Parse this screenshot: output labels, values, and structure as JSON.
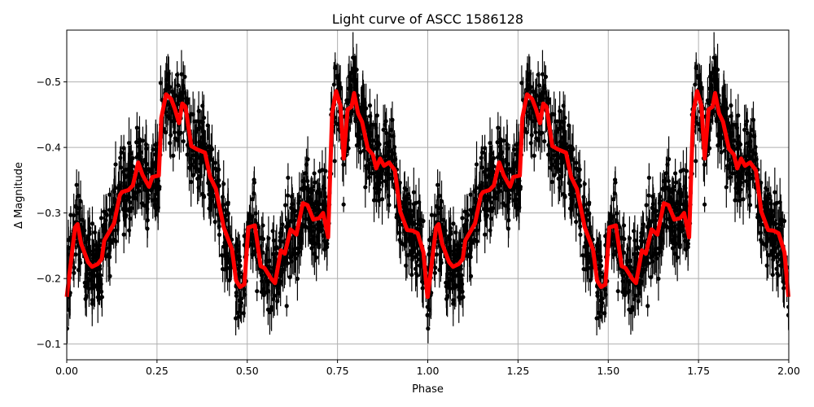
{
  "chart_data": {
    "type": "line",
    "title": "Light curve of ASCC 1586128",
    "xlabel": "Phase",
    "ylabel": "Δ Magnitude",
    "xlim": [
      0,
      2
    ],
    "ylim": [
      -0.579,
      -0.076
    ],
    "y_inverted": true,
    "grid": true,
    "x_ticks": [
      "0.00",
      "0.25",
      "0.50",
      "0.75",
      "1.00",
      "1.25",
      "1.50",
      "1.75",
      "2.00"
    ],
    "x_tick_values": [
      0,
      0.25,
      0.5,
      0.75,
      1,
      1.25,
      1.5,
      1.75,
      2
    ],
    "y_ticks": [
      "−0.5",
      "−0.4",
      "−0.3",
      "−0.2",
      "−0.1"
    ],
    "y_tick_values": [
      -0.5,
      -0.4,
      -0.3,
      -0.2,
      -0.1
    ],
    "colors": {
      "points": "#000000",
      "model": "#ff0000",
      "grid": "#b0b0b0"
    },
    "series": [
      {
        "kind": "errorbar-scatter",
        "description_color": "#000000"
      },
      {
        "kind": "smoothed-model",
        "color": "#ff0000",
        "period_repeat": true,
        "phase": [
          0,
          0.023,
          0.03,
          0.04,
          0.059,
          0.07,
          0.086,
          0.097,
          0.104,
          0.131,
          0.147,
          0.153,
          0.171,
          0.183,
          0.198,
          0.21,
          0.228,
          0.237,
          0.255,
          0.262,
          0.275,
          0.289,
          0.3,
          0.311,
          0.32,
          0.329,
          0.345,
          0.361,
          0.383,
          0.397,
          0.413,
          0.435,
          0.458,
          0.469,
          0.48,
          0.492,
          0.503,
          0.521,
          0.537,
          0.548,
          0.566,
          0.577,
          0.593,
          0.604,
          0.62,
          0.636,
          0.654,
          0.667,
          0.683,
          0.699,
          0.71,
          0.724,
          0.735,
          0.746,
          0.758,
          0.767,
          0.778,
          0.789,
          0.796,
          0.807,
          0.818,
          0.834,
          0.848,
          0.857,
          0.868,
          0.879,
          0.893,
          0.909,
          0.924,
          0.943,
          0.958,
          0.972,
          0.988,
          0.999
        ],
        "mag": [
          -0.172,
          -0.278,
          -0.283,
          -0.253,
          -0.225,
          -0.218,
          -0.222,
          -0.23,
          -0.258,
          -0.284,
          -0.327,
          -0.332,
          -0.335,
          -0.342,
          -0.377,
          -0.358,
          -0.34,
          -0.355,
          -0.357,
          -0.445,
          -0.481,
          -0.474,
          -0.458,
          -0.437,
          -0.467,
          -0.462,
          -0.402,
          -0.397,
          -0.392,
          -0.355,
          -0.337,
          -0.278,
          -0.244,
          -0.197,
          -0.187,
          -0.191,
          -0.278,
          -0.281,
          -0.219,
          -0.216,
          -0.2,
          -0.193,
          -0.243,
          -0.238,
          -0.275,
          -0.267,
          -0.315,
          -0.312,
          -0.29,
          -0.292,
          -0.3,
          -0.263,
          -0.452,
          -0.486,
          -0.464,
          -0.383,
          -0.458,
          -0.462,
          -0.483,
          -0.452,
          -0.439,
          -0.398,
          -0.389,
          -0.368,
          -0.383,
          -0.372,
          -0.377,
          -0.365,
          -0.302,
          -0.274,
          -0.273,
          -0.269,
          -0.24,
          -0.172
        ]
      }
    ]
  }
}
